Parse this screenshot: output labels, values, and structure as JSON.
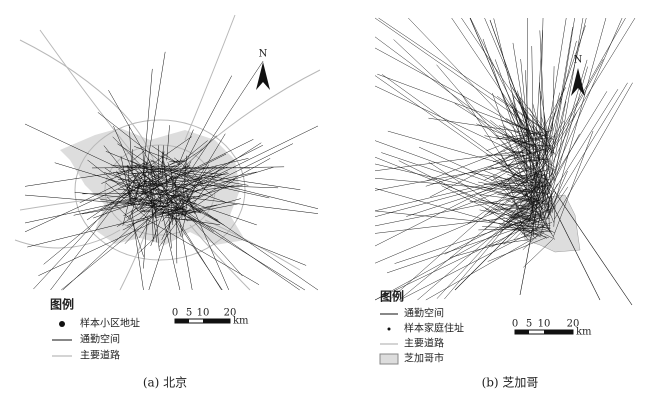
{
  "panels": [
    {
      "north": "N",
      "legend_title": "图例",
      "legend": [
        "样本小区地址",
        "通勤空间",
        "主要道路"
      ],
      "scale": [
        0,
        5,
        10,
        20
      ],
      "scale_unit": "km",
      "caption": "(a) 北京"
    },
    {
      "north": "N",
      "legend_title": "图例",
      "legend": [
        "通勤空间",
        "样本家庭住址",
        "主要道路",
        "芝加哥市"
      ],
      "scale": [
        0,
        5,
        10,
        20
      ],
      "scale_unit": "km",
      "caption": "(b) 芝加哥"
    }
  ]
}
